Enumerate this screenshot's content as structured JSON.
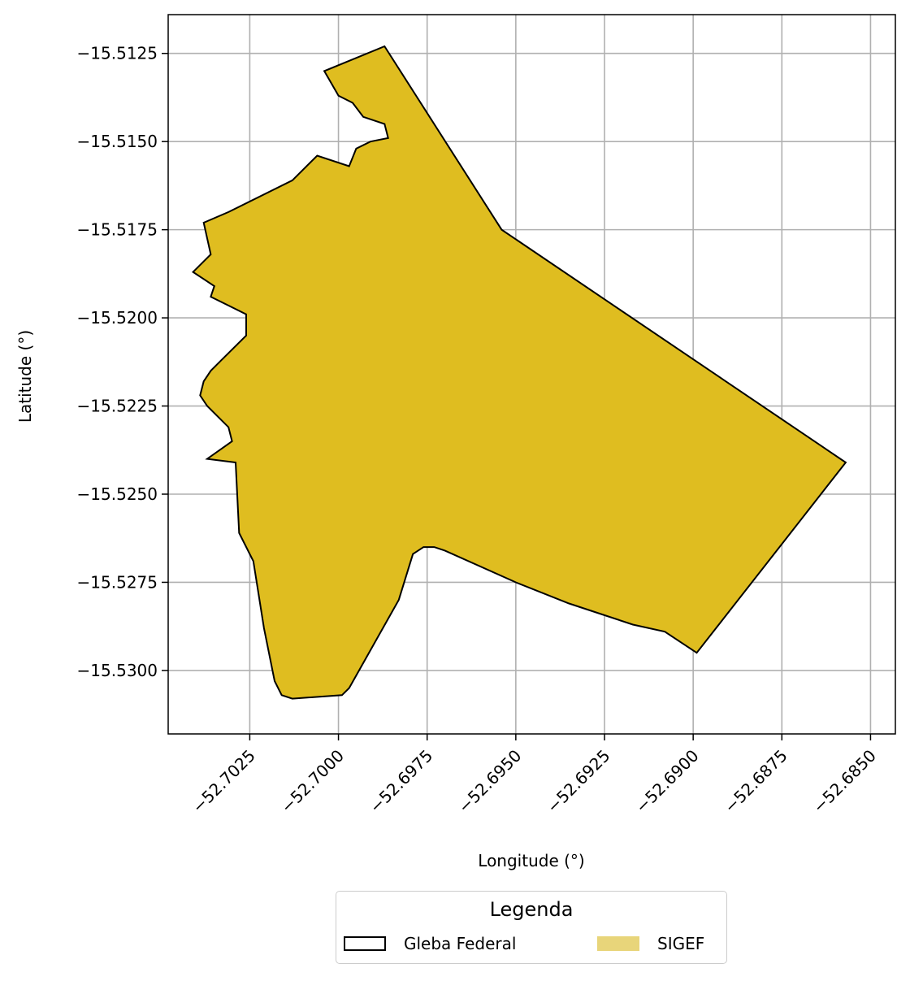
{
  "map": {
    "xlabel": "Longitude (°)",
    "ylabel": "Latitude (°)",
    "xlim": [
      -52.7048,
      -52.6843
    ],
    "ylim": [
      -15.5318,
      -15.5114
    ],
    "grid": true,
    "x_ticks": [
      {
        "value": -52.7025,
        "label": "−52.7025"
      },
      {
        "value": -52.7,
        "label": "−52.7000"
      },
      {
        "value": -52.6975,
        "label": "−52.6975"
      },
      {
        "value": -52.695,
        "label": "−52.6950"
      },
      {
        "value": -52.6925,
        "label": "−52.6925"
      },
      {
        "value": -52.69,
        "label": "−52.6900"
      },
      {
        "value": -52.6875,
        "label": "−52.6875"
      },
      {
        "value": -52.685,
        "label": "−52.6850"
      }
    ],
    "y_ticks": [
      {
        "value": -15.5125,
        "label": "−15.5125"
      },
      {
        "value": -15.515,
        "label": "−15.5150"
      },
      {
        "value": -15.5175,
        "label": "−15.5175"
      },
      {
        "value": -15.52,
        "label": "−15.5200"
      },
      {
        "value": -15.5225,
        "label": "−15.5225"
      },
      {
        "value": -15.525,
        "label": "−15.5250"
      },
      {
        "value": -15.5275,
        "label": "−15.5275"
      },
      {
        "value": -15.53,
        "label": "−15.5300"
      }
    ],
    "fill_color": "#dfbd20",
    "outline_color": "#000000",
    "polygon": [
      [
        -52.6987,
        -15.5123
      ],
      [
        -52.6954,
        -15.5175
      ],
      [
        -52.6857,
        -15.5241
      ],
      [
        -52.6899,
        -15.5295
      ],
      [
        -52.6908,
        -15.5289
      ],
      [
        -52.6917,
        -15.5287
      ],
      [
        -52.6935,
        -15.5281
      ],
      [
        -52.695,
        -15.5275
      ],
      [
        -52.697,
        -15.5266
      ],
      [
        -52.6973,
        -15.5265
      ],
      [
        -52.6976,
        -15.5265
      ],
      [
        -52.6979,
        -15.5267
      ],
      [
        -52.6983,
        -15.528
      ],
      [
        -52.6997,
        -15.5305
      ],
      [
        -52.6999,
        -15.5307
      ],
      [
        -52.7013,
        -15.5308
      ],
      [
        -52.7016,
        -15.5307
      ],
      [
        -52.7018,
        -15.5303
      ],
      [
        -52.7021,
        -15.5288
      ],
      [
        -52.7024,
        -15.5269
      ],
      [
        -52.7028,
        -15.5261
      ],
      [
        -52.7029,
        -15.5241
      ],
      [
        -52.7037,
        -15.524
      ],
      [
        -52.703,
        -15.5235
      ],
      [
        -52.7031,
        -15.5231
      ],
      [
        -52.7037,
        -15.5225
      ],
      [
        -52.7039,
        -15.5222
      ],
      [
        -52.7038,
        -15.5218
      ],
      [
        -52.7036,
        -15.5215
      ],
      [
        -52.7033,
        -15.5212
      ],
      [
        -52.7026,
        -15.5205
      ],
      [
        -52.7026,
        -15.5199
      ],
      [
        -52.7036,
        -15.5194
      ],
      [
        -52.7035,
        -15.5191
      ],
      [
        -52.7041,
        -15.5187
      ],
      [
        -52.7036,
        -15.5182
      ],
      [
        -52.7038,
        -15.5173
      ],
      [
        -52.7031,
        -15.517
      ],
      [
        -52.7013,
        -15.5161
      ],
      [
        -52.7006,
        -15.5154
      ],
      [
        -52.6997,
        -15.5157
      ],
      [
        -52.6995,
        -15.5152
      ],
      [
        -52.6991,
        -15.515
      ],
      [
        -52.6986,
        -15.5149
      ],
      [
        -52.6987,
        -15.5145
      ],
      [
        -52.6993,
        -15.5143
      ],
      [
        -52.6996,
        -15.5139
      ],
      [
        -52.6998,
        -15.5138
      ],
      [
        -52.7,
        -15.5137
      ],
      [
        -52.7004,
        -15.513
      ]
    ]
  },
  "legend": {
    "title": "Legenda",
    "items": [
      {
        "label": "Gleba Federal",
        "style": "outline",
        "edge_color": "#000000"
      },
      {
        "label": "SIGEF",
        "style": "fill",
        "color": "#e8d57a"
      }
    ]
  }
}
